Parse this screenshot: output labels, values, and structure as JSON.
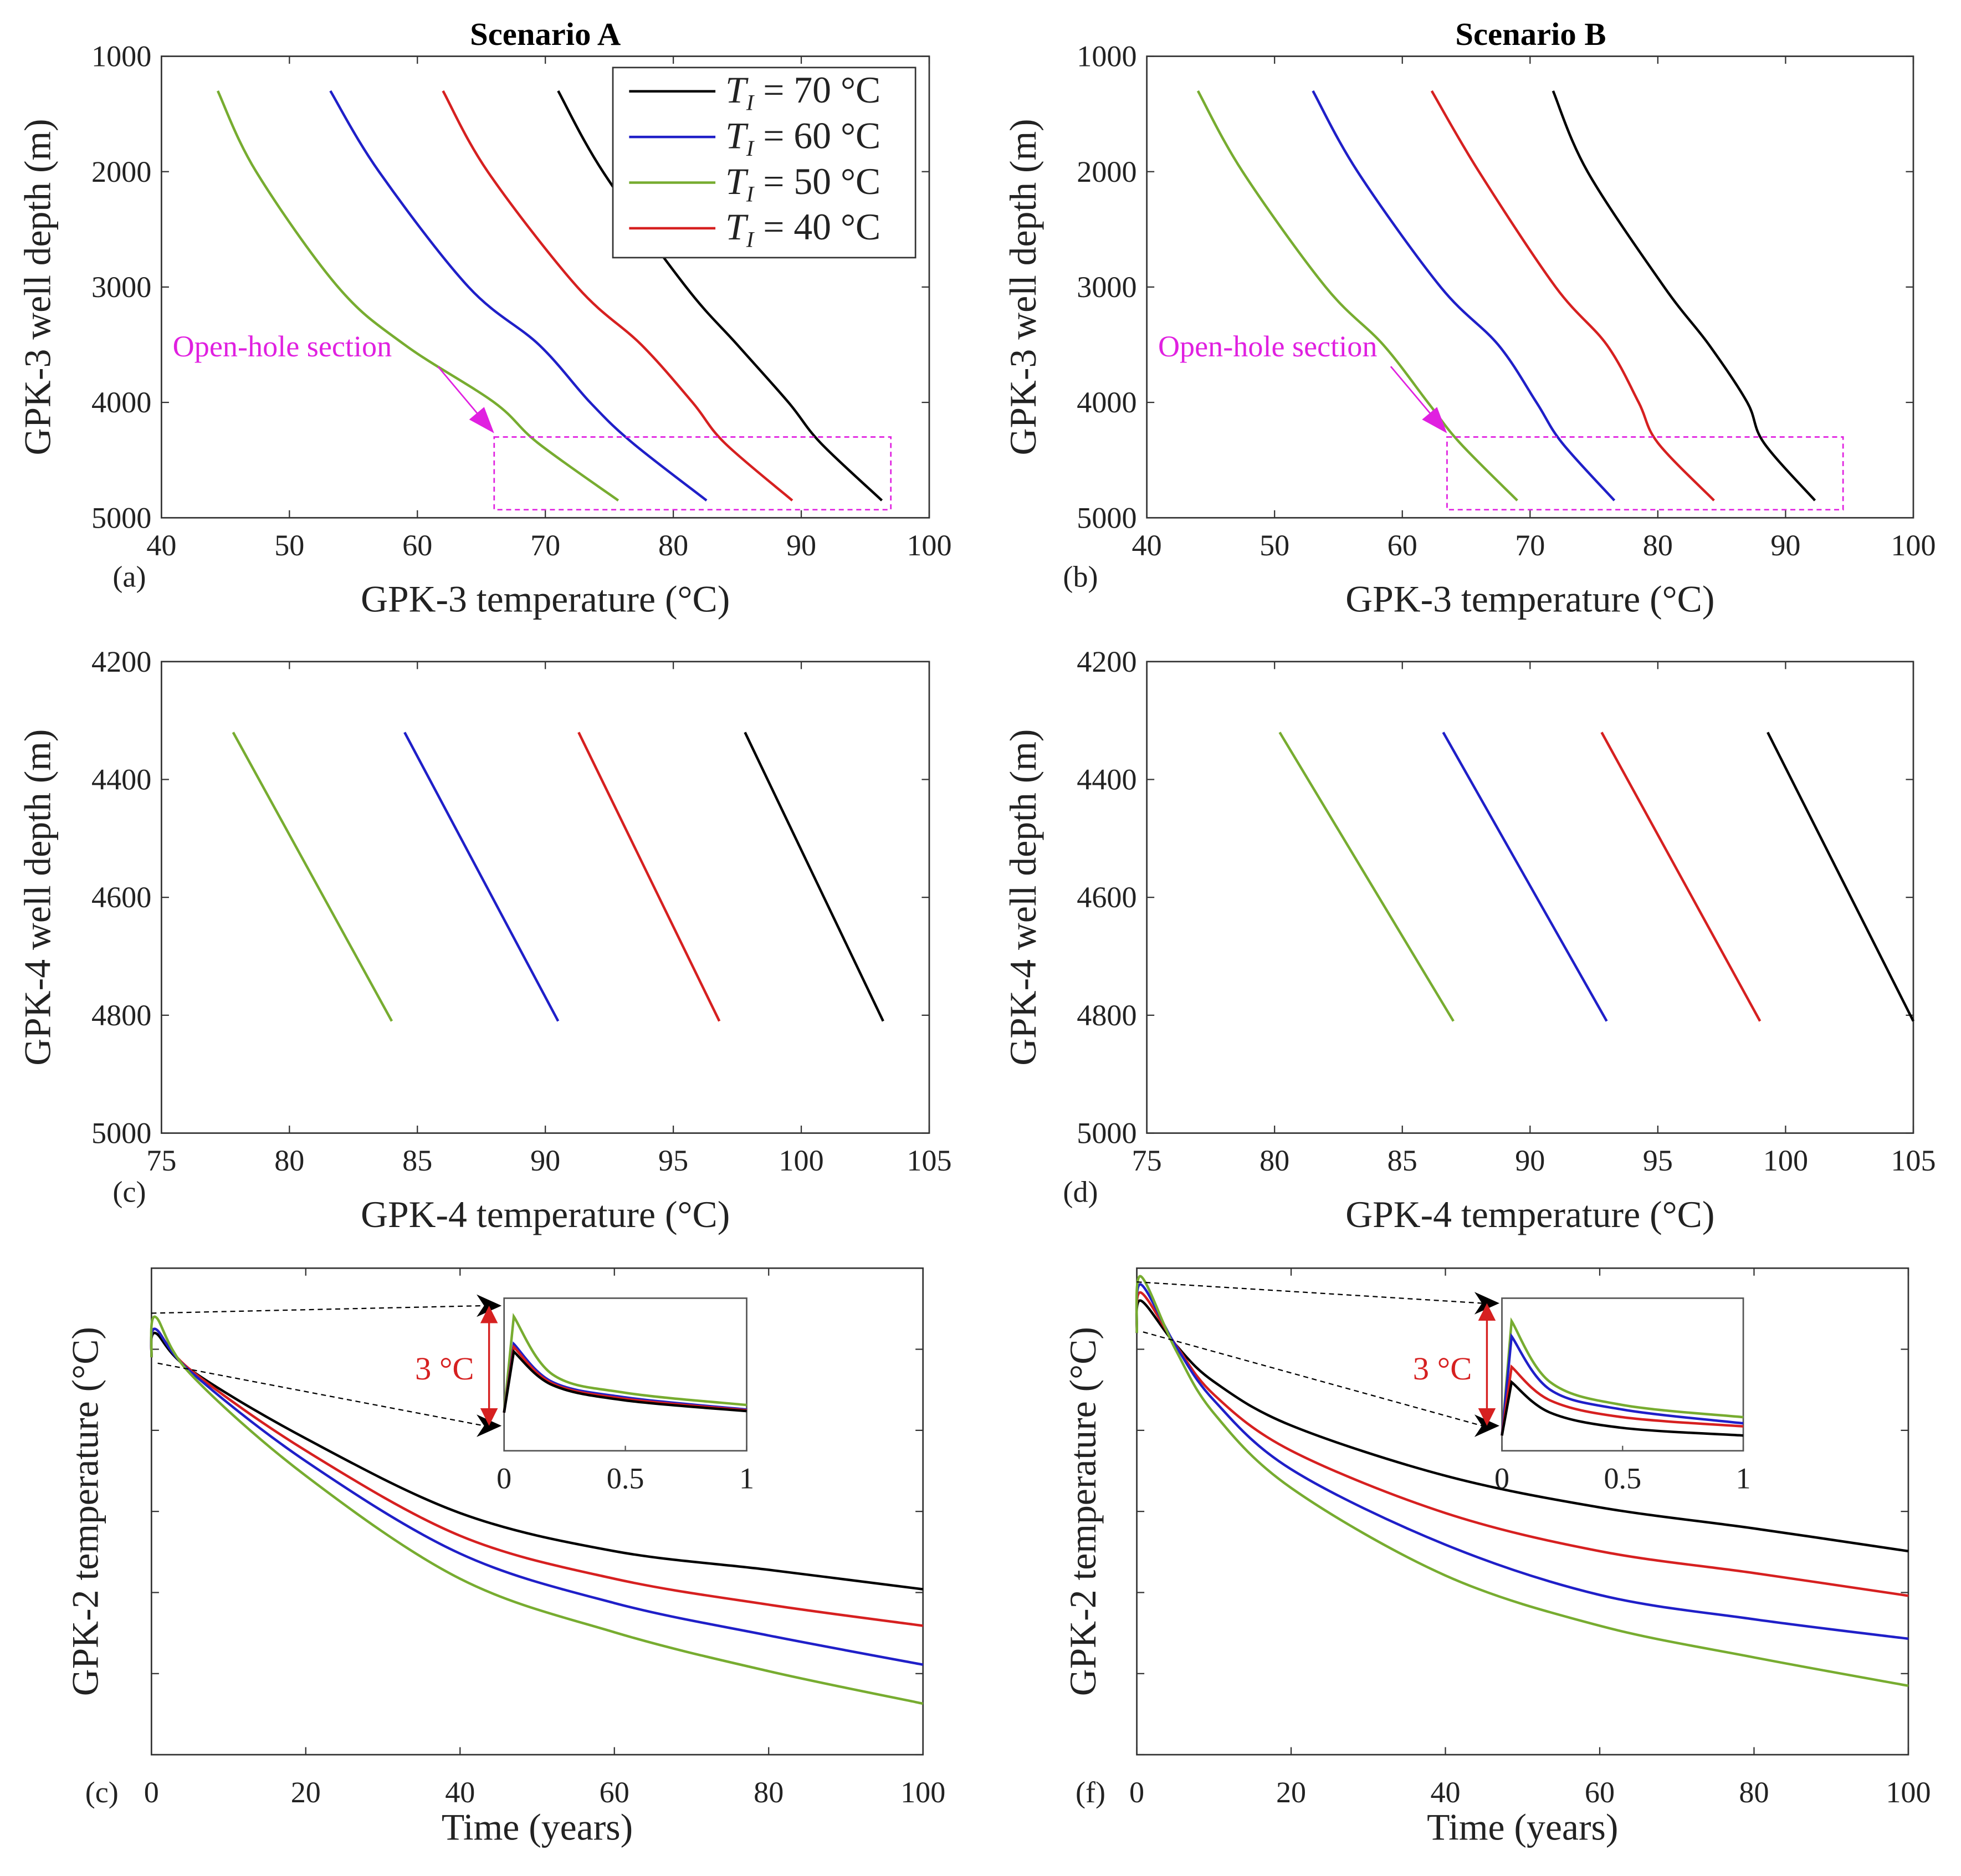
{
  "titles": [
    "Scenario A",
    "Scenario B"
  ],
  "chart_data": [
    {
      "type": "line",
      "tag": "(a)",
      "xlabel": "GPK-3 temperature (°C)",
      "ylabel": "GPK-3 well depth (m)",
      "xlim": [
        40,
        100
      ],
      "ylim": [
        1000,
        5000
      ],
      "y_reversed": true,
      "xticks": [
        40,
        50,
        60,
        70,
        80,
        90,
        100
      ],
      "yticks": [
        1000,
        2000,
        3000,
        4000,
        5000
      ],
      "legend": "top-right",
      "annotation": {
        "text": "Open-hole section",
        "box_x": [
          66,
          97
        ],
        "box_y": [
          4300,
          4930
        ],
        "color": "#e020e0"
      },
      "series": [
        {
          "name": "T_I = 70 °C",
          "color": "#000000",
          "x": [
            71,
            74.5,
            81,
            85,
            89,
            91.5,
            96.3
          ],
          "y": [
            1300,
            2000,
            3000,
            3500,
            4000,
            4350,
            4850
          ]
        },
        {
          "name": "T_I = 60 °C",
          "color": "#1f1fc8",
          "x": [
            53.2,
            57,
            64,
            69.5,
            73.5,
            76.8,
            82.6
          ],
          "y": [
            1300,
            2000,
            3000,
            3500,
            4000,
            4350,
            4850
          ]
        },
        {
          "name": "T_I = 50 °C",
          "color": "#77ac30",
          "x": [
            44.4,
            47.4,
            53.8,
            59,
            66,
            69.4,
            75.7
          ],
          "y": [
            1300,
            2000,
            3000,
            3500,
            4000,
            4350,
            4850
          ]
        },
        {
          "name": "T_I = 40 °C",
          "color": "#d62020",
          "x": [
            62,
            65.5,
            72.5,
            77.5,
            81.5,
            84,
            89.3
          ],
          "y": [
            1300,
            2000,
            3000,
            3500,
            4000,
            4350,
            4850
          ]
        }
      ]
    },
    {
      "type": "line",
      "tag": "(b)",
      "xlabel": "GPK-3 temperature (°C)",
      "ylabel": "GPK-3 well depth (m)",
      "xlim": [
        40,
        100
      ],
      "ylim": [
        1000,
        5000
      ],
      "y_reversed": true,
      "xticks": [
        40,
        50,
        60,
        70,
        80,
        90,
        100
      ],
      "yticks": [
        1000,
        2000,
        3000,
        4000,
        5000
      ],
      "annotation": {
        "text": "Open-hole section",
        "box_x": [
          63.5,
          94.5
        ],
        "box_y": [
          4300,
          4930
        ],
        "color": "#e020e0"
      },
      "series": [
        {
          "name": "T_I = 70 °C",
          "color": "#000000",
          "x": [
            71.8,
            74.5,
            80.5,
            84,
            87,
            88.3,
            92.3
          ],
          "y": [
            1300,
            2000,
            3000,
            3500,
            4000,
            4350,
            4850
          ]
        },
        {
          "name": "T_I = 60 °C",
          "color": "#1f1fc8",
          "x": [
            53,
            56.5,
            63,
            67.5,
            70.5,
            72.5,
            76.6
          ],
          "y": [
            1300,
            2000,
            3000,
            3500,
            4000,
            4350,
            4850
          ]
        },
        {
          "name": "T_I = 50 °C",
          "color": "#77ac30",
          "x": [
            44,
            47.5,
            54,
            58.5,
            62,
            64.5,
            69
          ],
          "y": [
            1300,
            2000,
            3000,
            3500,
            4000,
            4350,
            4850
          ]
        },
        {
          "name": "T_I = 40 °C",
          "color": "#d62020",
          "x": [
            62.3,
            66,
            72,
            76,
            78.5,
            80,
            84.4
          ],
          "y": [
            1300,
            2000,
            3000,
            3500,
            4000,
            4350,
            4850
          ]
        }
      ]
    },
    {
      "type": "line",
      "tag": "(c)",
      "xlabel": "GPK-4 temperature (°C)",
      "ylabel": "GPK-4 well depth (m)",
      "xlim": [
        75,
        105
      ],
      "ylim": [
        4200,
        5000
      ],
      "y_reversed": true,
      "xticks": [
        75,
        80,
        85,
        90,
        95,
        100,
        105
      ],
      "yticks": [
        4200,
        4400,
        4600,
        4800,
        5000
      ],
      "series": [
        {
          "name": "T_I = 70 °C",
          "color": "#000000",
          "x": [
            97.8,
            103.2
          ],
          "y": [
            4320,
            4810
          ]
        },
        {
          "name": "T_I = 60 °C",
          "color": "#1f1fc8",
          "x": [
            84.5,
            90.5
          ],
          "y": [
            4320,
            4810
          ]
        },
        {
          "name": "T_I = 50 °C",
          "color": "#77ac30",
          "x": [
            77.8,
            84
          ],
          "y": [
            4320,
            4810
          ]
        },
        {
          "name": "T_I = 40 °C",
          "color": "#d62020",
          "x": [
            91.3,
            96.8
          ],
          "y": [
            4320,
            4810
          ]
        }
      ]
    },
    {
      "type": "line",
      "tag": "(d)",
      "xlabel": "GPK-4 temperature (°C)",
      "ylabel": "GPK-4 well depth (m)",
      "xlim": [
        75,
        105
      ],
      "ylim": [
        4200,
        5000
      ],
      "y_reversed": true,
      "xticks": [
        75,
        80,
        85,
        90,
        95,
        100,
        105
      ],
      "yticks": [
        4200,
        4400,
        4600,
        4800,
        5000
      ],
      "series": [
        {
          "name": "T_I = 70 °C",
          "color": "#000000",
          "x": [
            99.3,
            105
          ],
          "y": [
            4320,
            4810
          ]
        },
        {
          "name": "T_I = 60 °C",
          "color": "#1f1fc8",
          "x": [
            86.6,
            93
          ],
          "y": [
            4320,
            4810
          ]
        },
        {
          "name": "T_I = 50 °C",
          "color": "#77ac30",
          "x": [
            80.2,
            87
          ],
          "y": [
            4320,
            4810
          ]
        },
        {
          "name": "T_I = 40 °C",
          "color": "#d62020",
          "x": [
            92.8,
            99
          ],
          "y": [
            4320,
            4810
          ]
        }
      ]
    },
    {
      "type": "line",
      "tag": "(c)",
      "xlabel": "Time (years)",
      "ylabel": "GPK-2 temperature (°C)",
      "xlim": [
        0,
        100
      ],
      "ylim": [
        0,
        6
      ],
      "y_tick_labels_shown": false,
      "xticks": [
        0,
        20,
        40,
        60,
        80,
        100
      ],
      "yticks": [
        0,
        1,
        2,
        3,
        4,
        5,
        6
      ],
      "inset": {
        "xticks": [
          0,
          0.5,
          1
        ],
        "xlim": [
          0,
          1
        ],
        "ylim": [
          0,
          1
        ],
        "range_label": "3 °C",
        "series": [
          {
            "color": "#77ac30",
            "x": [
              0,
              0.04,
              0.2,
              0.5,
              1
            ],
            "y": [
              0.25,
              0.88,
              0.5,
              0.38,
              0.3
            ]
          },
          {
            "color": "#1f1fc8",
            "x": [
              0,
              0.04,
              0.2,
              0.5,
              1
            ],
            "y": [
              0.25,
              0.7,
              0.45,
              0.35,
              0.27
            ]
          },
          {
            "color": "#d62020",
            "x": [
              0,
              0.04,
              0.2,
              0.5,
              1
            ],
            "y": [
              0.25,
              0.68,
              0.44,
              0.34,
              0.265
            ]
          },
          {
            "color": "#000000",
            "x": [
              0,
              0.04,
              0.2,
              0.5,
              1
            ],
            "y": [
              0.25,
              0.65,
              0.43,
              0.33,
              0.26
            ]
          }
        ]
      },
      "series": [
        {
          "name": "T_I = 70 °C",
          "color": "#000000",
          "x": [
            0,
            0.5,
            5,
            20,
            40,
            60,
            80,
            100
          ],
          "y": [
            4.9,
            5.2,
            4.75,
            3.9,
            2.98,
            2.51,
            2.28,
            2.04
          ]
        },
        {
          "name": "T_I = 40 °C",
          "color": "#d62020",
          "x": [
            0,
            0.5,
            5,
            20,
            40,
            60,
            80,
            100
          ],
          "y": [
            4.9,
            5.25,
            4.75,
            3.75,
            2.7,
            2.17,
            1.85,
            1.59
          ]
        },
        {
          "name": "T_I = 60 °C",
          "color": "#1f1fc8",
          "x": [
            0,
            0.5,
            5,
            20,
            40,
            60,
            80,
            100
          ],
          "y": [
            4.9,
            5.25,
            4.73,
            3.62,
            2.48,
            1.87,
            1.47,
            1.11
          ]
        },
        {
          "name": "T_I = 50 °C",
          "color": "#77ac30",
          "x": [
            0,
            0.5,
            5,
            20,
            40,
            60,
            80,
            100
          ],
          "y": [
            4.9,
            5.4,
            4.7,
            3.44,
            2.17,
            1.51,
            1.03,
            0.63
          ]
        }
      ]
    },
    {
      "type": "line",
      "tag": "(f)",
      "xlabel": "Time (years)",
      "ylabel": "GPK-2 temperature (°C)",
      "xlim": [
        0,
        100
      ],
      "ylim": [
        0,
        6
      ],
      "y_tick_labels_shown": false,
      "xticks": [
        0,
        20,
        40,
        60,
        80,
        100
      ],
      "yticks": [
        0,
        1,
        2,
        3,
        4,
        5,
        6
      ],
      "inset": {
        "xticks": [
          0,
          0.5,
          1
        ],
        "xlim": [
          0,
          1
        ],
        "ylim": [
          0,
          1
        ],
        "range_label": "3 °C",
        "series": [
          {
            "color": "#77ac30",
            "x": [
              0,
              0.04,
              0.2,
              0.5,
              1
            ],
            "y": [
              0.1,
              0.85,
              0.45,
              0.3,
              0.22
            ]
          },
          {
            "color": "#1f1fc8",
            "x": [
              0,
              0.04,
              0.2,
              0.5,
              1
            ],
            "y": [
              0.1,
              0.75,
              0.4,
              0.27,
              0.18
            ]
          },
          {
            "color": "#d62020",
            "x": [
              0,
              0.04,
              0.2,
              0.5,
              1
            ],
            "y": [
              0.1,
              0.55,
              0.33,
              0.22,
              0.16
            ]
          },
          {
            "color": "#000000",
            "x": [
              0,
              0.04,
              0.2,
              0.5,
              1
            ],
            "y": [
              0.1,
              0.45,
              0.25,
              0.15,
              0.1
            ]
          }
        ]
      },
      "series": [
        {
          "name": "T_I = 70 °C",
          "color": "#000000",
          "x": [
            0,
            0.5,
            5,
            10,
            20,
            40,
            60,
            80,
            100
          ],
          "y": [
            5.2,
            5.6,
            5.06,
            4.6,
            4.06,
            3.44,
            3.05,
            2.79,
            2.51
          ]
        },
        {
          "name": "T_I = 40 °C",
          "color": "#d62020",
          "x": [
            0,
            0.5,
            5,
            10,
            20,
            40,
            60,
            80,
            100
          ],
          "y": [
            5.2,
            5.7,
            5.06,
            4.44,
            3.75,
            2.98,
            2.51,
            2.24,
            1.96
          ]
        },
        {
          "name": "T_I = 60 °C",
          "color": "#1f1fc8",
          "x": [
            0,
            0.5,
            5,
            10,
            20,
            40,
            60,
            80,
            100
          ],
          "y": [
            5.2,
            5.8,
            5.05,
            4.37,
            3.52,
            2.59,
            1.97,
            1.67,
            1.43
          ]
        },
        {
          "name": "T_I = 50 °C",
          "color": "#77ac30",
          "x": [
            0,
            0.5,
            5,
            10,
            20,
            40,
            60,
            80,
            100
          ],
          "y": [
            5.2,
            5.9,
            5.0,
            4.21,
            3.29,
            2.21,
            1.59,
            1.2,
            0.85
          ]
        }
      ]
    }
  ]
}
